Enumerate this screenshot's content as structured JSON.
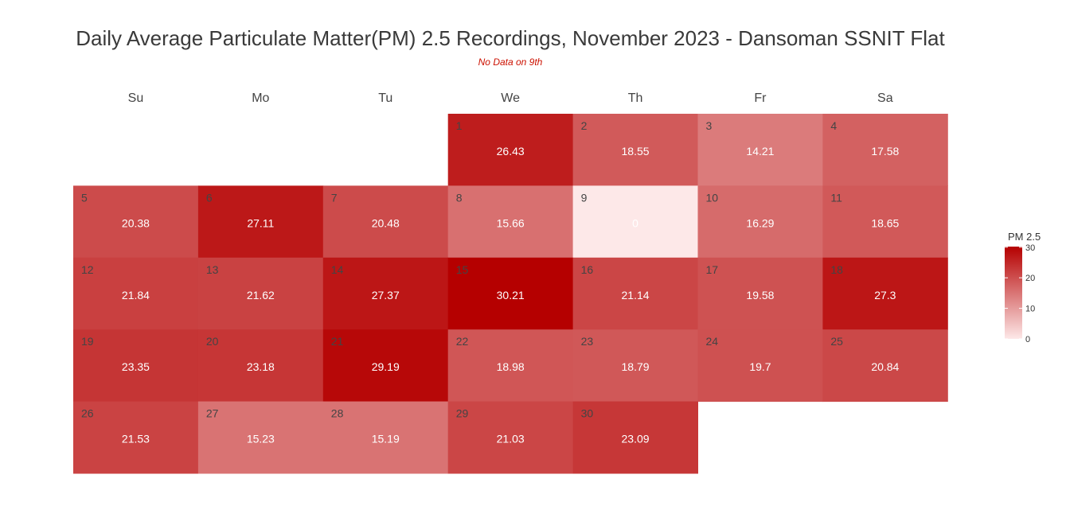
{
  "title": "Daily Average Particulate Matter(PM) 2.5 Recordings, November 2023 - Dansoman SSNIT Flat",
  "subtitle": "No Data on 9th",
  "chart_data": {
    "type": "heatmap",
    "layout": "calendar",
    "month": "November 2023",
    "weekdays": [
      "Su",
      "Mo",
      "Tu",
      "We",
      "Th",
      "Fr",
      "Sa"
    ],
    "first_weekday_index": 3,
    "days": [
      {
        "day": 1,
        "value": 26.43
      },
      {
        "day": 2,
        "value": 18.55
      },
      {
        "day": 3,
        "value": 14.21
      },
      {
        "day": 4,
        "value": 17.58
      },
      {
        "day": 5,
        "value": 20.38
      },
      {
        "day": 6,
        "value": 27.11
      },
      {
        "day": 7,
        "value": 20.48
      },
      {
        "day": 8,
        "value": 15.66
      },
      {
        "day": 9,
        "value": 0
      },
      {
        "day": 10,
        "value": 16.29
      },
      {
        "day": 11,
        "value": 18.65
      },
      {
        "day": 12,
        "value": 21.84
      },
      {
        "day": 13,
        "value": 21.62
      },
      {
        "day": 14,
        "value": 27.37
      },
      {
        "day": 15,
        "value": 30.21
      },
      {
        "day": 16,
        "value": 21.14
      },
      {
        "day": 17,
        "value": 19.58
      },
      {
        "day": 18,
        "value": 27.3
      },
      {
        "day": 19,
        "value": 23.35
      },
      {
        "day": 20,
        "value": 23.18
      },
      {
        "day": 21,
        "value": 29.19
      },
      {
        "day": 22,
        "value": 18.98
      },
      {
        "day": 23,
        "value": 18.79
      },
      {
        "day": 24,
        "value": 19.7
      },
      {
        "day": 25,
        "value": 20.84
      },
      {
        "day": 26,
        "value": 21.53
      },
      {
        "day": 27,
        "value": 15.23
      },
      {
        "day": 28,
        "value": 15.19
      },
      {
        "day": 29,
        "value": 21.03
      },
      {
        "day": 30,
        "value": 23.09
      }
    ],
    "legend": {
      "title": "PM 2.5",
      "ticks": [
        0,
        10,
        20,
        30
      ],
      "range": [
        0,
        30.21
      ],
      "low_color": "#fde8e8",
      "high_color": "#b50000",
      "placement": "right"
    },
    "grid": false
  }
}
